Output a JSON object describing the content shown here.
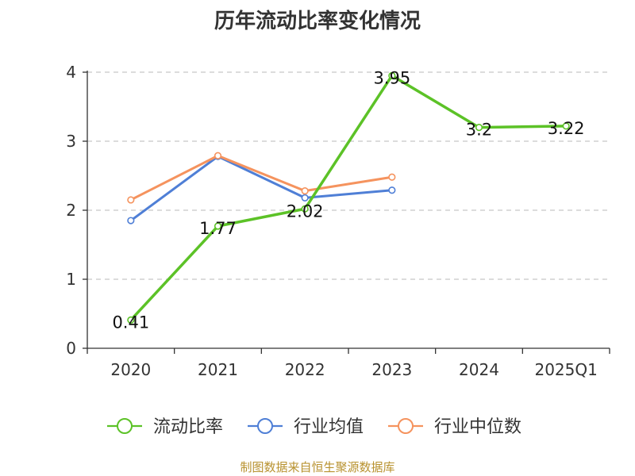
{
  "title": "历年流动比率变化情况",
  "source": "制图数据来自恒生聚源数据库",
  "chart_data": {
    "type": "line",
    "title": "历年流动比率变化情况",
    "categories": [
      "2020",
      "2021",
      "2022",
      "2023",
      "2024",
      "2025Q1"
    ],
    "ylim": [
      0,
      4
    ],
    "yticks": [
      0,
      1,
      2,
      3,
      4
    ],
    "grid": true,
    "legend_position": "bottom",
    "series": [
      {
        "name": "流动比率",
        "color": "#5cc227",
        "values": [
          0.41,
          1.77,
          2.02,
          3.95,
          3.2,
          3.22
        ],
        "labels": [
          "0.41",
          "1.77",
          "2.02",
          "3.95",
          "3.2",
          "3.22"
        ]
      },
      {
        "name": "行业均值",
        "color": "#4f7fd6",
        "values": [
          1.85,
          2.78,
          2.18,
          2.29,
          null,
          null
        ]
      },
      {
        "name": "行业中位数",
        "color": "#f5935e",
        "values": [
          2.15,
          2.79,
          2.28,
          2.48,
          null,
          null
        ]
      }
    ]
  }
}
